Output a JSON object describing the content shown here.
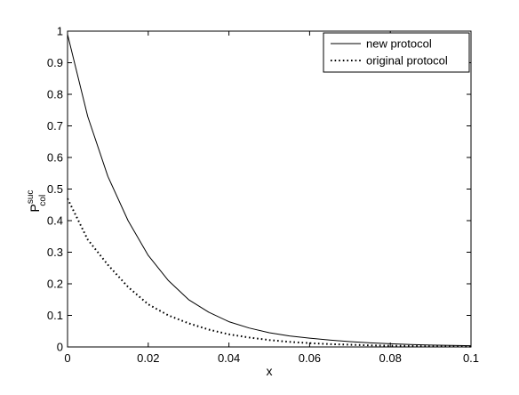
{
  "chart_data": {
    "type": "line",
    "title": "",
    "xlabel": "x",
    "ylabel": {
      "base": "P",
      "superscript": "suc",
      "subscript": "col"
    },
    "xlim": [
      0,
      0.1
    ],
    "ylim": [
      0,
      1
    ],
    "grid": false,
    "legend_position": "top-right",
    "x_ticks": [
      0,
      0.02,
      0.04,
      0.06,
      0.08,
      0.1
    ],
    "x_tick_labels": [
      "0",
      "0.02",
      "0.04",
      "0.06",
      "0.08",
      "0.1"
    ],
    "y_ticks": [
      0,
      0.1,
      0.2,
      0.3,
      0.4,
      0.5,
      0.6,
      0.7,
      0.8,
      0.9,
      1
    ],
    "y_tick_labels": [
      "0",
      "0.1",
      "0.2",
      "0.3",
      "0.4",
      "0.5",
      "0.6",
      "0.7",
      "0.8",
      "0.9",
      "1"
    ],
    "x": [
      0,
      0.005,
      0.01,
      0.015,
      0.02,
      0.025,
      0.03,
      0.035,
      0.04,
      0.045,
      0.05,
      0.055,
      0.06,
      0.065,
      0.07,
      0.075,
      0.08,
      0.085,
      0.09,
      0.095,
      0.1
    ],
    "series": [
      {
        "name": "new protocol",
        "style": "solid",
        "color": "#000000",
        "values": [
          0.99,
          0.73,
          0.54,
          0.4,
          0.29,
          0.21,
          0.15,
          0.11,
          0.08,
          0.06,
          0.045,
          0.035,
          0.028,
          0.022,
          0.017,
          0.013,
          0.01,
          0.008,
          0.006,
          0.005,
          0.004
        ]
      },
      {
        "name": "original protocol",
        "style": "dotted",
        "color": "#000000",
        "values": [
          0.47,
          0.34,
          0.26,
          0.19,
          0.135,
          0.1,
          0.075,
          0.055,
          0.04,
          0.03,
          0.022,
          0.016,
          0.012,
          0.009,
          0.007,
          0.005,
          0.004,
          0.003,
          0.002,
          0.0015,
          0.001
        ]
      }
    ]
  }
}
